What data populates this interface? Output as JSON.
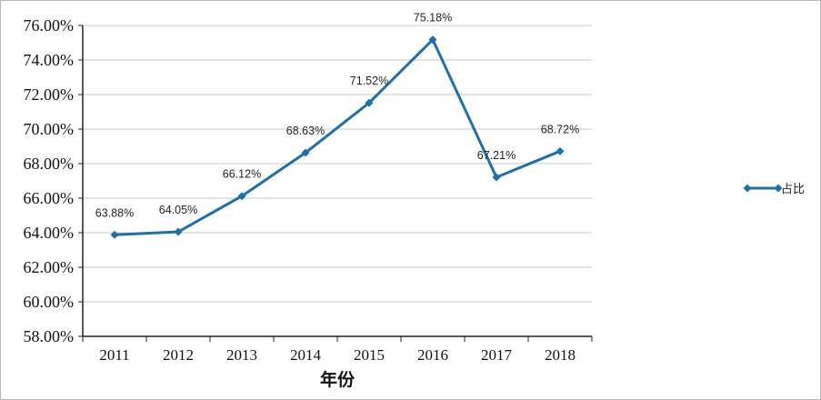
{
  "chart_data": {
    "type": "line",
    "title": "",
    "xlabel": "年份",
    "ylabel": "",
    "categories": [
      "2011",
      "2012",
      "2013",
      "2014",
      "2015",
      "2016",
      "2017",
      "2018"
    ],
    "series": [
      {
        "name": "占比",
        "values": [
          63.88,
          64.05,
          66.12,
          68.63,
          71.52,
          75.18,
          67.21,
          68.72
        ],
        "labels": [
          "63.88%",
          "64.05%",
          "66.12%",
          "68.63%",
          "71.52%",
          "75.18%",
          "67.21%",
          "68.72%"
        ],
        "color": "#1f6fa8"
      }
    ],
    "ylim": [
      58,
      76
    ],
    "yticks": [
      "58.00%",
      "60.00%",
      "62.00%",
      "64.00%",
      "66.00%",
      "68.00%",
      "70.00%",
      "72.00%",
      "74.00%",
      "76.00%"
    ],
    "grid": true,
    "legend_position": "right"
  }
}
